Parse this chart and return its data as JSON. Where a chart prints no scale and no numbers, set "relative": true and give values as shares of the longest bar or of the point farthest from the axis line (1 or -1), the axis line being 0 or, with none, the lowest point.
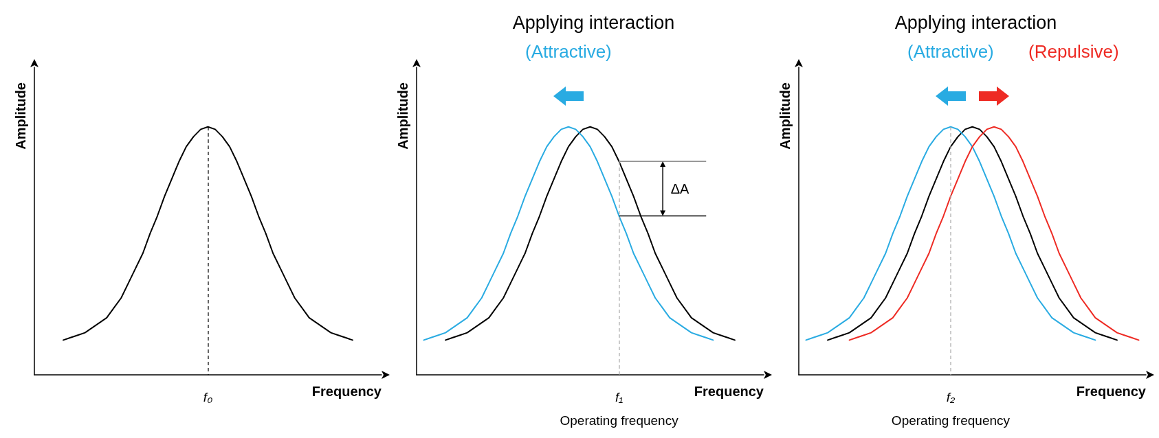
{
  "chart_data": [
    {
      "type": "line",
      "xlabel": "Frequency",
      "ylabel": "Amplitude",
      "relative": true,
      "marker": "none",
      "categories": [
        null,
        null,
        null,
        null,
        null,
        null,
        null,
        null,
        null,
        null,
        null,
        null,
        null,
        null,
        null,
        null,
        null,
        null,
        null,
        null,
        null,
        null,
        null,
        null,
        null,
        null,
        null,
        null,
        null,
        null,
        null,
        null,
        null,
        null,
        null,
        null,
        null,
        null,
        null,
        null,
        null,
        null,
        null,
        null,
        null,
        null,
        null,
        null,
        null
      ],
      "series": [
        {
          "color": "#000000",
          "values": [
            null,
            null,
            null,
            null,
            0.14,
            0.15,
            0.16,
            0.17,
            0.19,
            0.21,
            0.23,
            0.27,
            0.31,
            0.37,
            0.43,
            0.49,
            0.57,
            0.64,
            0.72,
            0.79,
            0.86,
            0.92,
            0.96,
            0.99,
            1,
            0.99,
            0.96,
            0.92,
            0.86,
            0.79,
            0.72,
            0.64,
            0.57,
            0.49,
            0.43,
            0.37,
            0.31,
            0.27,
            0.23,
            0.21,
            0.19,
            0.17,
            0.16,
            0.15,
            0.14,
            null,
            null,
            null,
            null
          ]
        }
      ],
      "annotations": [
        "f₀"
      ]
    },
    {
      "type": "line",
      "title": "Applying interaction",
      "xlabel": "Frequency",
      "ylabel": "Amplitude",
      "relative": true,
      "marker": "none",
      "categories": [
        null,
        null,
        null,
        null,
        null,
        null,
        null,
        null,
        null,
        null,
        null,
        null,
        null,
        null,
        null,
        null,
        null,
        null,
        null,
        null,
        null,
        null,
        null,
        null,
        null,
        null,
        null,
        null,
        null,
        null,
        null,
        null,
        null,
        null,
        null,
        null,
        null,
        null,
        null,
        null,
        null,
        null,
        null,
        null,
        null,
        null,
        null,
        null,
        null
      ],
      "series": [
        {
          "color": "#000000",
          "values": [
            null,
            null,
            null,
            null,
            0.14,
            0.15,
            0.16,
            0.17,
            0.19,
            0.21,
            0.23,
            0.27,
            0.31,
            0.37,
            0.43,
            0.49,
            0.57,
            0.64,
            0.72,
            0.79,
            0.86,
            0.92,
            0.96,
            0.99,
            1,
            0.99,
            0.96,
            0.92,
            0.86,
            0.79,
            0.72,
            0.64,
            0.57,
            0.49,
            0.43,
            0.37,
            0.31,
            0.27,
            0.23,
            0.21,
            0.19,
            0.17,
            0.16,
            0.15,
            0.14,
            null,
            null,
            null,
            null
          ]
        },
        {
          "name": "(Attractive)",
          "color": "#29abe2",
          "values": [
            null,
            0.14,
            0.15,
            0.16,
            0.17,
            0.19,
            0.21,
            0.23,
            0.27,
            0.31,
            0.37,
            0.43,
            0.49,
            0.57,
            0.64,
            0.72,
            0.79,
            0.86,
            0.92,
            0.96,
            0.99,
            1,
            0.99,
            0.96,
            0.92,
            0.86,
            0.79,
            0.72,
            0.64,
            0.57,
            0.49,
            0.43,
            0.37,
            0.31,
            0.27,
            0.23,
            0.21,
            0.19,
            0.17,
            0.16,
            0.15,
            0.14,
            null,
            null,
            null,
            null,
            null,
            null,
            null
          ]
        }
      ],
      "annotations": [
        "f₁",
        "ΔA",
        "Operating frequency"
      ]
    },
    {
      "type": "line",
      "title": "Applying interaction",
      "xlabel": "Frequency",
      "ylabel": "Amplitude",
      "relative": true,
      "marker": "none",
      "categories": [
        null,
        null,
        null,
        null,
        null,
        null,
        null,
        null,
        null,
        null,
        null,
        null,
        null,
        null,
        null,
        null,
        null,
        null,
        null,
        null,
        null,
        null,
        null,
        null,
        null,
        null,
        null,
        null,
        null,
        null,
        null,
        null,
        null,
        null,
        null,
        null,
        null,
        null,
        null,
        null,
        null,
        null,
        null,
        null,
        null,
        null,
        null,
        null,
        null
      ],
      "series": [
        {
          "color": "#000000",
          "values": [
            null,
            null,
            null,
            null,
            0.14,
            0.15,
            0.16,
            0.17,
            0.19,
            0.21,
            0.23,
            0.27,
            0.31,
            0.37,
            0.43,
            0.49,
            0.57,
            0.64,
            0.72,
            0.79,
            0.86,
            0.92,
            0.96,
            0.99,
            1,
            0.99,
            0.96,
            0.92,
            0.86,
            0.79,
            0.72,
            0.64,
            0.57,
            0.49,
            0.43,
            0.37,
            0.31,
            0.27,
            0.23,
            0.21,
            0.19,
            0.17,
            0.16,
            0.15,
            0.14,
            null,
            null,
            null,
            null
          ]
        },
        {
          "name": "(Attractive)",
          "color": "#29abe2",
          "values": [
            null,
            0.14,
            0.15,
            0.16,
            0.17,
            0.19,
            0.21,
            0.23,
            0.27,
            0.31,
            0.37,
            0.43,
            0.49,
            0.57,
            0.64,
            0.72,
            0.79,
            0.86,
            0.92,
            0.96,
            0.99,
            1,
            0.99,
            0.96,
            0.92,
            0.86,
            0.79,
            0.72,
            0.64,
            0.57,
            0.49,
            0.43,
            0.37,
            0.31,
            0.27,
            0.23,
            0.21,
            0.19,
            0.17,
            0.16,
            0.15,
            0.14,
            null,
            null,
            null,
            null,
            null,
            null,
            null
          ]
        },
        {
          "name": "(Repulsive)",
          "color": "#ee2b24",
          "values": [
            null,
            null,
            null,
            null,
            null,
            null,
            null,
            0.14,
            0.15,
            0.16,
            0.17,
            0.19,
            0.21,
            0.23,
            0.27,
            0.31,
            0.37,
            0.43,
            0.49,
            0.57,
            0.64,
            0.72,
            0.79,
            0.86,
            0.92,
            0.96,
            0.99,
            1,
            0.99,
            0.96,
            0.92,
            0.86,
            0.79,
            0.72,
            0.64,
            0.57,
            0.49,
            0.43,
            0.37,
            0.31,
            0.27,
            0.23,
            0.21,
            0.19,
            0.17,
            0.16,
            0.15,
            0.14,
            null
          ]
        }
      ],
      "annotations": [
        "f₂",
        "Operating frequency"
      ]
    }
  ]
}
